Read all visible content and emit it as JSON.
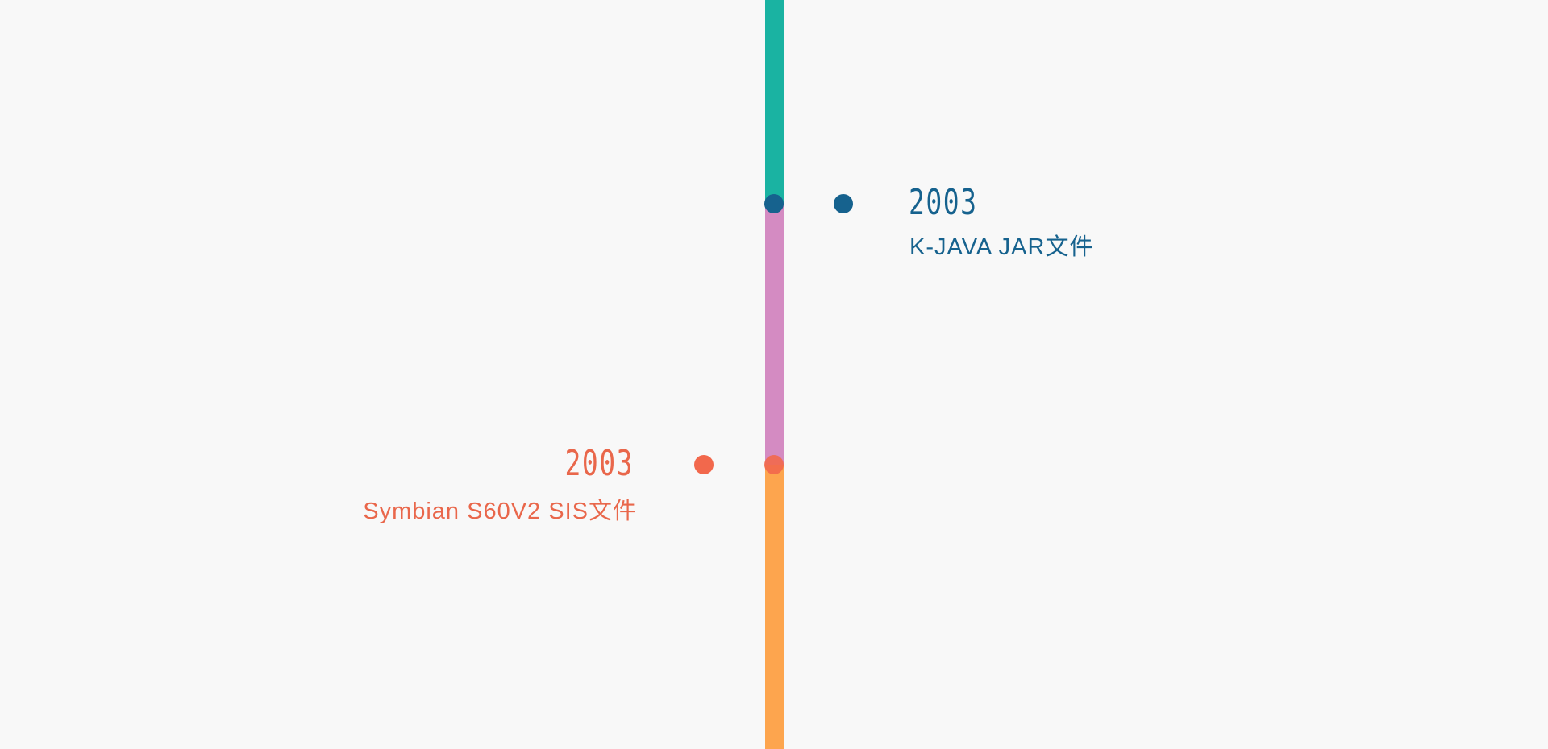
{
  "items": [
    {
      "year": "2003",
      "label": "K-JAVA  JAR文件"
    },
    {
      "year": "2003",
      "label": "Symbian S60V2  SIS文件"
    }
  ]
}
